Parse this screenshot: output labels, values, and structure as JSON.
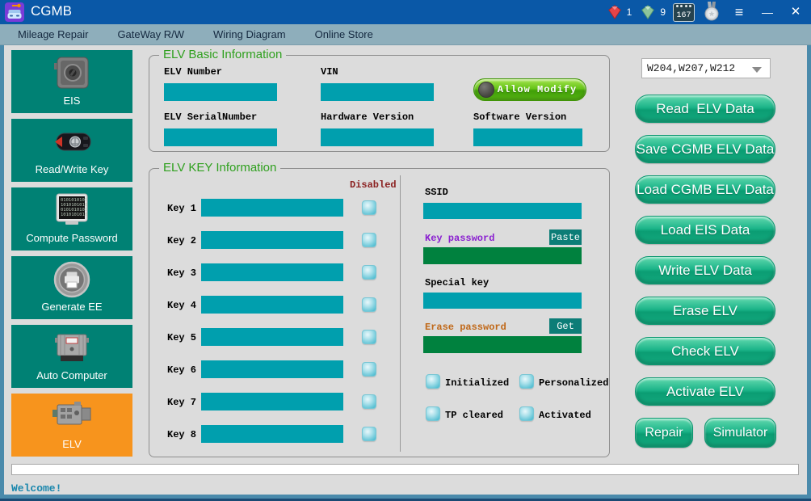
{
  "titlebar": {
    "title": "CGMB",
    "ruby_count": "1",
    "emerald_count": "9",
    "days_value": "167",
    "controls": {
      "menu": "≡",
      "minimize": "—",
      "close": "✕"
    }
  },
  "menubar": {
    "items": [
      "Mileage Repair",
      "GateWay R/W",
      "Wiring Diagram",
      "Online Store"
    ]
  },
  "sidebar": {
    "items": [
      {
        "label": "EIS",
        "active": false
      },
      {
        "label": "Read/Write Key",
        "active": false
      },
      {
        "label": "Compute Password",
        "active": false
      },
      {
        "label": "Generate EE",
        "active": false
      },
      {
        "label": "Auto Computer",
        "active": false
      },
      {
        "label": "ELV",
        "active": true
      }
    ]
  },
  "basic_info": {
    "title": "ELV Basic Information",
    "elv_number_label": "ELV Number",
    "elv_number_value": "",
    "vin_label": "VIN",
    "vin_value": "",
    "allow_modify_label": "Allow Modify",
    "elv_serial_label": "ELV SerialNumber",
    "elv_serial_value": "",
    "hardware_label": "Hardware Version",
    "hardware_value": "",
    "software_label": "Software Version",
    "software_value": ""
  },
  "key_info": {
    "title": "ELV KEY Information",
    "disabled_label": "Disabled",
    "keys": [
      {
        "label": "Key 1",
        "value": "",
        "disabled": false
      },
      {
        "label": "Key 2",
        "value": "",
        "disabled": false
      },
      {
        "label": "Key 3",
        "value": "",
        "disabled": false
      },
      {
        "label": "Key 4",
        "value": "",
        "disabled": false
      },
      {
        "label": "Key 5",
        "value": "",
        "disabled": false
      },
      {
        "label": "Key 6",
        "value": "",
        "disabled": false
      },
      {
        "label": "Key 7",
        "value": "",
        "disabled": false
      },
      {
        "label": "Key 8",
        "value": "",
        "disabled": false
      }
    ],
    "ssid_label": "SSID",
    "ssid_value": "",
    "key_password_label": "Key password",
    "key_password_value": "",
    "paste_button": "Paste",
    "special_key_label": "Special key",
    "special_key_value": "",
    "erase_password_label": "Erase password",
    "erase_password_value": "",
    "get_button": "Get",
    "status_flags": [
      {
        "label": "Initialized",
        "checked": false
      },
      {
        "label": "Personalized",
        "checked": false
      },
      {
        "label": "TP cleared",
        "checked": false
      },
      {
        "label": "Activated",
        "checked": false
      }
    ]
  },
  "actions": {
    "model_select_value": "W204,W207,W212",
    "buttons": [
      "Read  ELV Data",
      "Save CGMB ELV Data",
      "Load CGMB ELV Data",
      "Load EIS Data",
      "Write ELV Data",
      "Erase ELV",
      "Check ELV",
      "Activate ELV"
    ],
    "repair_button": "Repair",
    "simulator_button": "Simulator"
  },
  "statusbar": {
    "message": "Welcome!",
    "progress_percent": 0
  },
  "colors": {
    "titlebar_blue": "#0a58a7",
    "menubar_blue_gray": "#8eaebb",
    "content_bg": "#dcdcdc",
    "sidebar_teal": "#008174",
    "active_orange": "#f7941d",
    "field_teal": "#009fae",
    "field_green": "#00813e",
    "button_green": "#12ab7f",
    "toggle_green": "#55b313",
    "group_title_green": "#2fa01e",
    "disabled_red": "#8b2121",
    "key_password_purple": "#8a1fd0",
    "erase_password_orange": "#c06818",
    "status_text_blue": "#1b87ad",
    "frame_steel_blue": "#4a8aab"
  }
}
